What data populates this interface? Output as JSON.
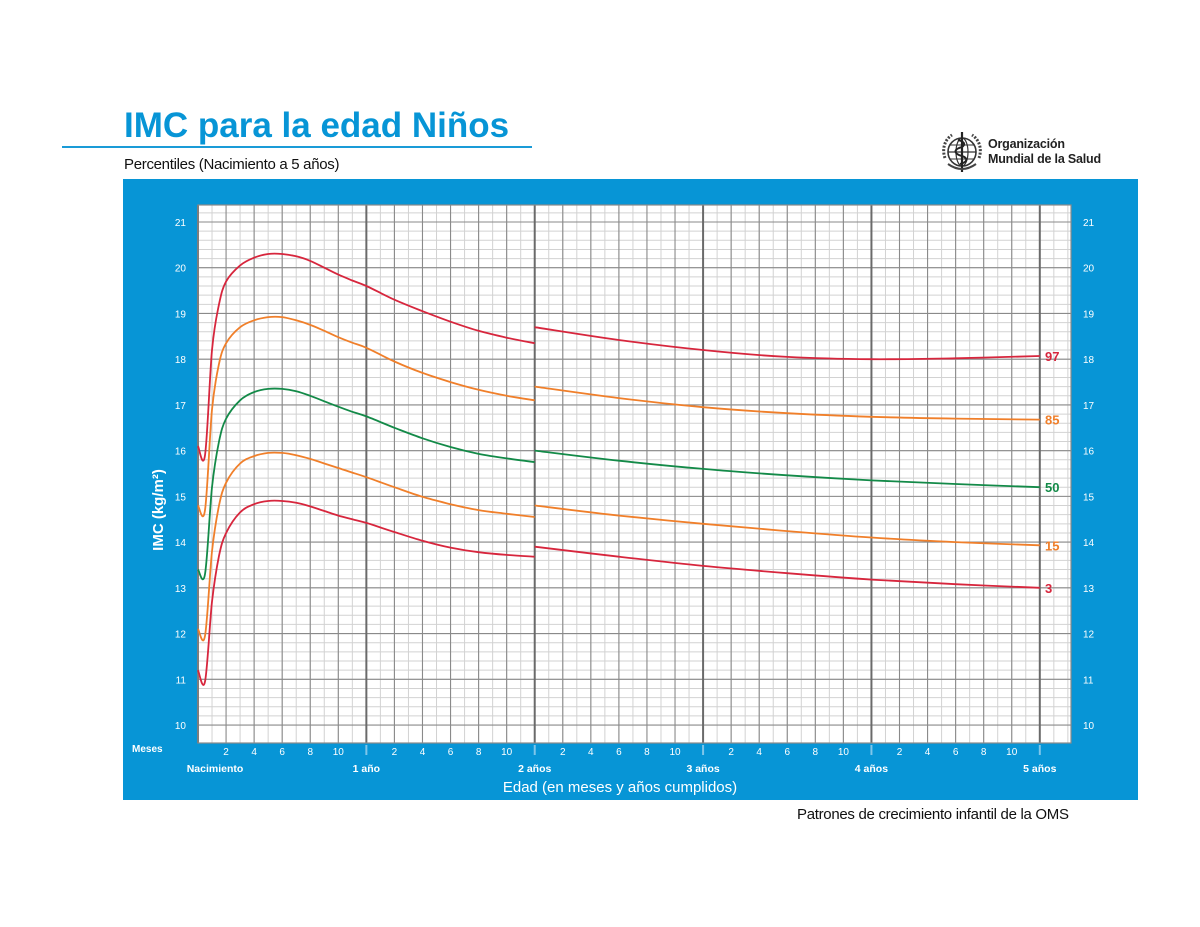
{
  "header": {
    "title": "IMC para la edad Niños",
    "subtitle": "Percentiles (Nacimiento a 5 años)",
    "logo_line1": "Organización",
    "logo_line2": "Mundial de la Salud",
    "logo_icon": "who-emblem-icon"
  },
  "footer": {
    "source": "Patrones de crecimiento infantil de la OMS"
  },
  "colors": {
    "panel_blue": "#0795d6",
    "p97": "#d7263d",
    "p85": "#f07f2a",
    "p50": "#138a48",
    "p15": "#f07f2a",
    "p3": "#d7263d",
    "grid_major": "#8a8a8a",
    "grid_minor": "#d2d2d2"
  },
  "chart_data": {
    "type": "line",
    "title": "IMC para la edad Niños",
    "subtitle": "Percentiles (Nacimiento a 5 años)",
    "xlabel": "Edad (en meses y años cumplidos)",
    "ylabel": "IMC (kg/m²)",
    "x_unit": "months",
    "xlim": [
      0,
      62
    ],
    "ylim": [
      10,
      21
    ],
    "yticks": [
      10,
      11,
      12,
      13,
      14,
      15,
      16,
      17,
      18,
      19,
      20,
      21
    ],
    "x_month_ticks": [
      "2",
      "4",
      "6",
      "8",
      "10"
    ],
    "x_month_row_label": "Meses",
    "x_year_labels": [
      {
        "month": 0,
        "label": "Nacimiento"
      },
      {
        "month": 12,
        "label": "1 año"
      },
      {
        "month": 24,
        "label": "2 años"
      },
      {
        "month": 36,
        "label": "3 años"
      },
      {
        "month": 48,
        "label": "4 años"
      },
      {
        "month": 60,
        "label": "5 años"
      }
    ],
    "grid": true,
    "legend_position": "right-end labels",
    "series": [
      {
        "name": "97",
        "color": "#d7263d",
        "segment1": {
          "x": [
            0,
            0.5,
            1,
            1.5,
            2,
            3,
            4,
            5,
            6,
            7,
            8,
            9,
            10,
            11,
            12,
            14,
            16,
            18,
            20,
            22,
            24
          ],
          "y": [
            16.1,
            15.9,
            18.2,
            19.2,
            19.7,
            20.05,
            20.22,
            20.3,
            20.3,
            20.25,
            20.15,
            20.0,
            19.85,
            19.72,
            19.6,
            19.3,
            19.05,
            18.82,
            18.62,
            18.47,
            18.35
          ]
        },
        "segment2": {
          "x": [
            24,
            30,
            36,
            42,
            48,
            54,
            60
          ],
          "y": [
            18.7,
            18.42,
            18.2,
            18.05,
            18.0,
            18.02,
            18.07
          ]
        }
      },
      {
        "name": "85",
        "color": "#f07f2a",
        "segment1": {
          "x": [
            0,
            0.5,
            1,
            1.5,
            2,
            3,
            4,
            5,
            6,
            7,
            8,
            9,
            10,
            11,
            12,
            14,
            16,
            18,
            20,
            22,
            24
          ],
          "y": [
            14.8,
            14.7,
            16.9,
            17.9,
            18.35,
            18.7,
            18.85,
            18.92,
            18.92,
            18.85,
            18.75,
            18.62,
            18.48,
            18.36,
            18.25,
            17.95,
            17.7,
            17.5,
            17.33,
            17.2,
            17.1
          ]
        },
        "segment2": {
          "x": [
            24,
            30,
            36,
            42,
            48,
            54,
            60
          ],
          "y": [
            17.4,
            17.15,
            16.95,
            16.82,
            16.74,
            16.7,
            16.68
          ]
        }
      },
      {
        "name": "50",
        "color": "#138a48",
        "segment1": {
          "x": [
            0,
            0.5,
            1,
            1.5,
            2,
            3,
            4,
            5,
            6,
            7,
            8,
            9,
            10,
            11,
            12,
            14,
            16,
            18,
            20,
            22,
            24
          ],
          "y": [
            13.4,
            13.3,
            15.2,
            16.2,
            16.7,
            17.1,
            17.28,
            17.35,
            17.35,
            17.3,
            17.2,
            17.08,
            16.96,
            16.85,
            16.75,
            16.5,
            16.27,
            16.08,
            15.93,
            15.83,
            15.75
          ]
        },
        "segment2": {
          "x": [
            24,
            30,
            36,
            42,
            48,
            54,
            60
          ],
          "y": [
            16.0,
            15.78,
            15.6,
            15.46,
            15.35,
            15.27,
            15.2
          ]
        }
      },
      {
        "name": "15",
        "color": "#f07f2a",
        "segment1": {
          "x": [
            0,
            0.5,
            1,
            1.5,
            2,
            3,
            4,
            5,
            6,
            7,
            8,
            9,
            10,
            11,
            12,
            14,
            16,
            18,
            20,
            22,
            24
          ],
          "y": [
            12.1,
            11.95,
            13.8,
            14.8,
            15.3,
            15.72,
            15.88,
            15.95,
            15.95,
            15.9,
            15.82,
            15.72,
            15.62,
            15.52,
            15.42,
            15.2,
            14.99,
            14.83,
            14.7,
            14.62,
            14.55
          ]
        },
        "segment2": {
          "x": [
            24,
            30,
            36,
            42,
            48,
            54,
            60
          ],
          "y": [
            14.8,
            14.58,
            14.4,
            14.24,
            14.1,
            14.0,
            13.93
          ]
        }
      },
      {
        "name": "3",
        "color": "#d7263d",
        "segment1": {
          "x": [
            0,
            0.5,
            1,
            1.5,
            2,
            3,
            4,
            5,
            6,
            7,
            8,
            9,
            10,
            11,
            12,
            14,
            16,
            18,
            20,
            22,
            24
          ],
          "y": [
            11.2,
            10.95,
            12.7,
            13.7,
            14.2,
            14.65,
            14.83,
            14.9,
            14.9,
            14.86,
            14.78,
            14.68,
            14.58,
            14.5,
            14.42,
            14.22,
            14.03,
            13.88,
            13.78,
            13.72,
            13.68
          ]
        },
        "segment2": {
          "x": [
            24,
            30,
            36,
            42,
            48,
            54,
            60
          ],
          "y": [
            13.9,
            13.68,
            13.48,
            13.32,
            13.18,
            13.08,
            13.0
          ]
        }
      }
    ]
  }
}
